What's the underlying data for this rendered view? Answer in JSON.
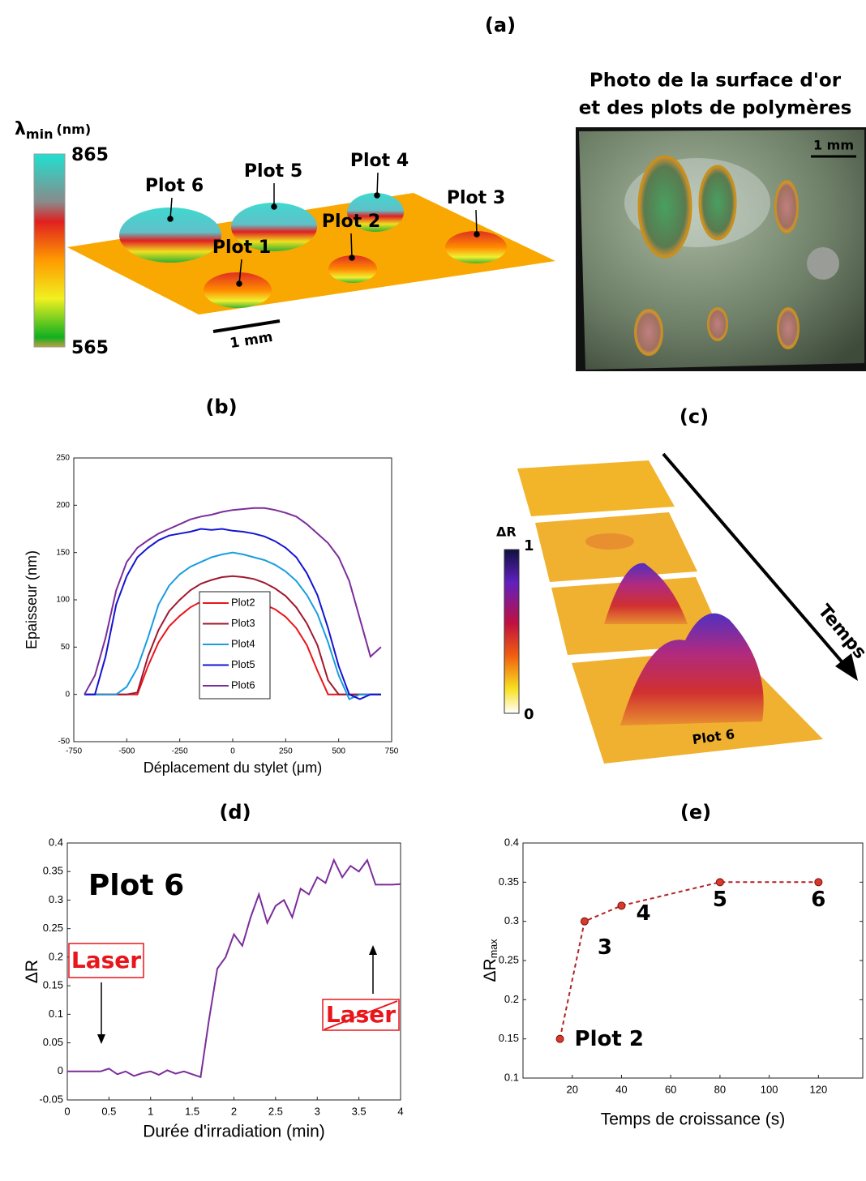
{
  "panel_a": {
    "label": "(a)",
    "colorbar_symbol": "λ",
    "colorbar_sub": "min",
    "colorbar_unit": "(nm)",
    "colorbar_max": 865,
    "colorbar_min": 565,
    "plots": [
      "Plot 1",
      "Plot 2",
      "Plot 3",
      "Plot 4",
      "Plot 5",
      "Plot 6"
    ],
    "scale_bar": "1 mm",
    "photo_title": [
      "Photo de la surface d'or",
      "et des plots de polymères"
    ],
    "photo_scale_bar": "1 mm"
  },
  "panel_c": {
    "label": "(c)",
    "colorbar_label": "ΔR",
    "colorbar_max": 1,
    "colorbar_min": 0,
    "arrow_label": "Temps",
    "slab_label": "Plot 6"
  },
  "chart_data": [
    {
      "panel": "(b)",
      "type": "line",
      "xlabel": "Déplacement du stylet (μm)",
      "ylabel": "Epaisseur (nm)",
      "x": [
        -700,
        -650,
        -600,
        -550,
        -500,
        -450,
        -400,
        -350,
        -300,
        -250,
        -200,
        -150,
        -100,
        -50,
        0,
        50,
        100,
        150,
        200,
        250,
        300,
        350,
        400,
        450,
        500,
        550,
        600,
        650,
        700
      ],
      "series": [
        {
          "name": "Plot2",
          "color": "#e8161b",
          "values": [
            0,
            0,
            0,
            0,
            0,
            0,
            30,
            55,
            72,
            83,
            92,
            98,
            102,
            104,
            105,
            104,
            100,
            95,
            90,
            82,
            70,
            52,
            25,
            0,
            0,
            0,
            0,
            0,
            0
          ]
        },
        {
          "name": "Plot3",
          "color": "#a0182e",
          "values": [
            0,
            0,
            0,
            0,
            0,
            2,
            40,
            68,
            88,
            100,
            110,
            117,
            121,
            124,
            125,
            124,
            122,
            118,
            112,
            104,
            92,
            75,
            52,
            15,
            0,
            0,
            0,
            0,
            0
          ]
        },
        {
          "name": "Plot4",
          "color": "#1a9de0",
          "values": [
            0,
            0,
            0,
            0,
            8,
            28,
            60,
            95,
            115,
            127,
            135,
            140,
            145,
            148,
            150,
            148,
            145,
            142,
            137,
            130,
            120,
            105,
            85,
            55,
            20,
            -5,
            0,
            0,
            0
          ]
        },
        {
          "name": "Plot5",
          "color": "#1414d2",
          "values": [
            0,
            0,
            40,
            95,
            125,
            145,
            155,
            163,
            168,
            170,
            172,
            175,
            174,
            175,
            173,
            172,
            170,
            167,
            162,
            155,
            145,
            128,
            105,
            70,
            30,
            0,
            -5,
            0,
            0
          ]
        },
        {
          "name": "Plot6",
          "color": "#7b2d9a",
          "values": [
            0,
            20,
            60,
            110,
            140,
            155,
            163,
            170,
            175,
            180,
            185,
            188,
            190,
            193,
            195,
            196,
            197,
            197,
            195,
            192,
            188,
            180,
            170,
            160,
            145,
            120,
            80,
            40,
            50
          ]
        }
      ],
      "xlim": [
        -750,
        750
      ],
      "ylim": [
        -50,
        250
      ],
      "xticks": [
        -750,
        -500,
        -250,
        0,
        250,
        500,
        750
      ],
      "yticks": [
        -50,
        0,
        50,
        100,
        150,
        200,
        250
      ],
      "legend": "center"
    },
    {
      "panel": "(d)",
      "type": "line",
      "xlabel": "Durée d'irradiation (min)",
      "ylabel": "ΔR",
      "annotations": [
        "Plot 6",
        "Laser",
        "Laser"
      ],
      "x": [
        0,
        0.1,
        0.2,
        0.3,
        0.4,
        0.5,
        0.6,
        0.7,
        0.8,
        0.9,
        1,
        1.1,
        1.2,
        1.3,
        1.4,
        1.5,
        1.6,
        1.7,
        1.8,
        1.9,
        2,
        2.1,
        2.2,
        2.3,
        2.4,
        2.5,
        2.6,
        2.7,
        2.8,
        2.9,
        3,
        3.1,
        3.2,
        3.3,
        3.4,
        3.5,
        3.6,
        3.7,
        3.8,
        3.9,
        4
      ],
      "series": [
        {
          "color": "#7b2d9a",
          "values": [
            0,
            0,
            0,
            0,
            0,
            0.005,
            -0.005,
            0,
            -0.008,
            -0.003,
            0,
            -0.006,
            0.002,
            -0.004,
            0,
            -0.005,
            -0.01,
            0.09,
            0.18,
            0.2,
            0.24,
            0.22,
            0.27,
            0.31,
            0.26,
            0.29,
            0.3,
            0.27,
            0.32,
            0.31,
            0.34,
            0.33,
            0.37,
            0.34,
            0.36,
            0.35,
            0.37,
            0.327,
            0.327,
            0.327,
            0.328
          ]
        }
      ],
      "xlim": [
        0,
        4
      ],
      "ylim": [
        -0.05,
        0.4
      ],
      "xticks": [
        0,
        0.5,
        1,
        1.5,
        2,
        2.5,
        3,
        3.5,
        4
      ],
      "yticks": [
        -0.05,
        0,
        0.05,
        0.1,
        0.15,
        0.2,
        0.25,
        0.3,
        0.35,
        0.4
      ]
    },
    {
      "panel": "(e)",
      "type": "line",
      "xlabel": "Temps de croissance (s)",
      "ylabel": "ΔR",
      "ylabel_sub": "max",
      "x": [
        15,
        25,
        40,
        80,
        120
      ],
      "series": [
        {
          "color": "#b22222",
          "values": [
            0.15,
            0.3,
            0.32,
            0.35,
            0.35
          ],
          "dashed": true,
          "markers": true
        }
      ],
      "point_labels": [
        "Plot 2",
        "3",
        "4",
        "5",
        "6"
      ],
      "xlim": [
        0,
        138
      ],
      "ylim": [
        0.1,
        0.4
      ],
      "xticks": [
        20,
        40,
        60,
        80,
        100,
        120
      ],
      "yticks": [
        0.1,
        0.15,
        0.2,
        0.25,
        0.3,
        0.35,
        0.4
      ]
    }
  ]
}
